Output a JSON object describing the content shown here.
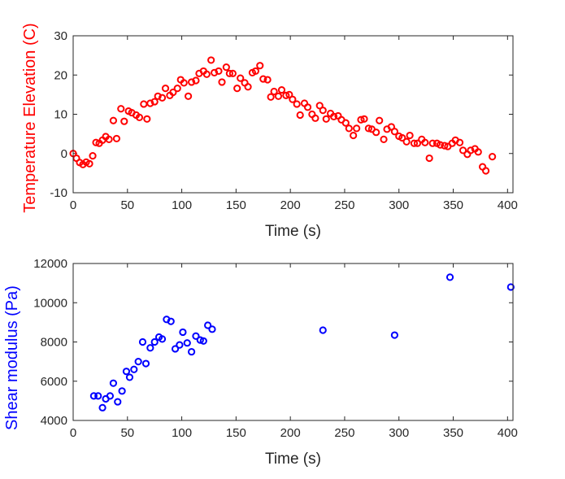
{
  "chart_data": [
    {
      "type": "scatter",
      "xlabel": "Time (s)",
      "ylabel": "Temperature Elevation (C)",
      "xlim": [
        0,
        405
      ],
      "ylim": [
        -10,
        30
      ],
      "xticks": [
        0,
        50,
        100,
        150,
        200,
        250,
        300,
        350,
        400
      ],
      "yticks": [
        -10,
        0,
        10,
        20,
        30
      ],
      "color": "#ff0000",
      "label_color": "#ff0000",
      "marker": "circle",
      "points": [
        [
          0,
          0
        ],
        [
          3,
          -1.2
        ],
        [
          6,
          -2.3
        ],
        [
          9,
          -2.8
        ],
        [
          12,
          -2.2
        ],
        [
          15,
          -2.6
        ],
        [
          18,
          -0.6
        ],
        [
          21,
          2.8
        ],
        [
          24,
          2.6
        ],
        [
          27,
          3.4
        ],
        [
          30,
          4.3
        ],
        [
          33,
          3.6
        ],
        [
          37,
          8.4
        ],
        [
          40,
          3.8
        ],
        [
          44,
          11.4
        ],
        [
          47,
          8.2
        ],
        [
          51,
          10.8
        ],
        [
          54,
          10.4
        ],
        [
          58,
          9.8
        ],
        [
          61,
          9.2
        ],
        [
          65,
          12.6
        ],
        [
          68,
          8.8
        ],
        [
          71,
          12.8
        ],
        [
          75,
          13.2
        ],
        [
          78,
          14.6
        ],
        [
          82,
          14.2
        ],
        [
          85,
          16.6
        ],
        [
          89,
          14.8
        ],
        [
          92,
          15.6
        ],
        [
          96,
          16.6
        ],
        [
          99,
          18.8
        ],
        [
          102,
          18.0
        ],
        [
          106,
          14.6
        ],
        [
          109,
          18.2
        ],
        [
          113,
          18.6
        ],
        [
          116,
          20.4
        ],
        [
          120,
          21.0
        ],
        [
          123,
          20.2
        ],
        [
          127,
          23.8
        ],
        [
          130,
          20.6
        ],
        [
          134,
          21.0
        ],
        [
          137,
          18.2
        ],
        [
          141,
          22.0
        ],
        [
          144,
          20.4
        ],
        [
          147,
          20.4
        ],
        [
          151,
          16.6
        ],
        [
          154,
          19.2
        ],
        [
          158,
          18.0
        ],
        [
          161,
          17.0
        ],
        [
          165,
          20.6
        ],
        [
          168,
          21.0
        ],
        [
          172,
          22.4
        ],
        [
          175,
          19.0
        ],
        [
          179,
          18.8
        ],
        [
          182,
          14.4
        ],
        [
          185,
          15.8
        ],
        [
          189,
          14.6
        ],
        [
          192,
          16.2
        ],
        [
          196,
          14.8
        ],
        [
          199,
          15.0
        ],
        [
          202,
          13.8
        ],
        [
          206,
          12.6
        ],
        [
          209,
          9.8
        ],
        [
          213,
          12.8
        ],
        [
          216,
          11.8
        ],
        [
          220,
          10.0
        ],
        [
          223,
          9.0
        ],
        [
          227,
          12.2
        ],
        [
          230,
          11.0
        ],
        [
          233,
          8.8
        ],
        [
          237,
          10.2
        ],
        [
          240,
          9.4
        ],
        [
          244,
          9.6
        ],
        [
          247,
          8.6
        ],
        [
          251,
          7.8
        ],
        [
          254,
          6.4
        ],
        [
          258,
          4.6
        ],
        [
          261,
          6.4
        ],
        [
          265,
          8.6
        ],
        [
          268,
          8.8
        ],
        [
          272,
          6.4
        ],
        [
          275,
          6.2
        ],
        [
          279,
          5.4
        ],
        [
          282,
          8.4
        ],
        [
          286,
          3.6
        ],
        [
          289,
          6.2
        ],
        [
          293,
          6.8
        ],
        [
          296,
          5.6
        ],
        [
          300,
          4.4
        ],
        [
          303,
          4.0
        ],
        [
          307,
          3.0
        ],
        [
          310,
          4.6
        ],
        [
          314,
          2.6
        ],
        [
          317,
          2.6
        ],
        [
          321,
          3.6
        ],
        [
          324,
          2.8
        ],
        [
          328,
          -1.2
        ],
        [
          331,
          2.6
        ],
        [
          335,
          2.6
        ],
        [
          338,
          2.2
        ],
        [
          342,
          2.0
        ],
        [
          345,
          1.8
        ],
        [
          349,
          2.6
        ],
        [
          352,
          3.4
        ],
        [
          356,
          2.8
        ],
        [
          359,
          0.8
        ],
        [
          363,
          -0.2
        ],
        [
          366,
          0.8
        ],
        [
          370,
          1.2
        ],
        [
          373,
          0.4
        ],
        [
          377,
          -3.4
        ],
        [
          380,
          -4.4
        ],
        [
          386,
          -0.8
        ]
      ]
    },
    {
      "type": "scatter",
      "xlabel": "Time (s)",
      "ylabel": "Shear modulus (Pa)",
      "xlim": [
        0,
        405
      ],
      "ylim": [
        4000,
        12000
      ],
      "xticks": [
        0,
        50,
        100,
        150,
        200,
        250,
        300,
        350,
        400
      ],
      "yticks": [
        4000,
        6000,
        8000,
        10000,
        12000
      ],
      "color": "#0000ff",
      "label_color": "#0000ff",
      "marker": "circle",
      "points": [
        [
          19,
          5250
        ],
        [
          23,
          5250
        ],
        [
          27,
          4650
        ],
        [
          30,
          5100
        ],
        [
          34,
          5250
        ],
        [
          37,
          5900
        ],
        [
          41,
          4950
        ],
        [
          45,
          5500
        ],
        [
          49,
          6500
        ],
        [
          52,
          6200
        ],
        [
          56,
          6600
        ],
        [
          60,
          7000
        ],
        [
          64,
          8000
        ],
        [
          67,
          6900
        ],
        [
          71,
          7700
        ],
        [
          75,
          8000
        ],
        [
          79,
          8250
        ],
        [
          82,
          8150
        ],
        [
          86,
          9150
        ],
        [
          90,
          9050
        ],
        [
          94,
          7650
        ],
        [
          98,
          7850
        ],
        [
          101,
          8500
        ],
        [
          105,
          7950
        ],
        [
          109,
          7500
        ],
        [
          113,
          8300
        ],
        [
          117,
          8100
        ],
        [
          120,
          8050
        ],
        [
          124,
          8850
        ],
        [
          128,
          8650
        ],
        [
          230,
          8600
        ],
        [
          296,
          8350
        ],
        [
          347,
          11300
        ],
        [
          403,
          10800
        ]
      ]
    }
  ]
}
